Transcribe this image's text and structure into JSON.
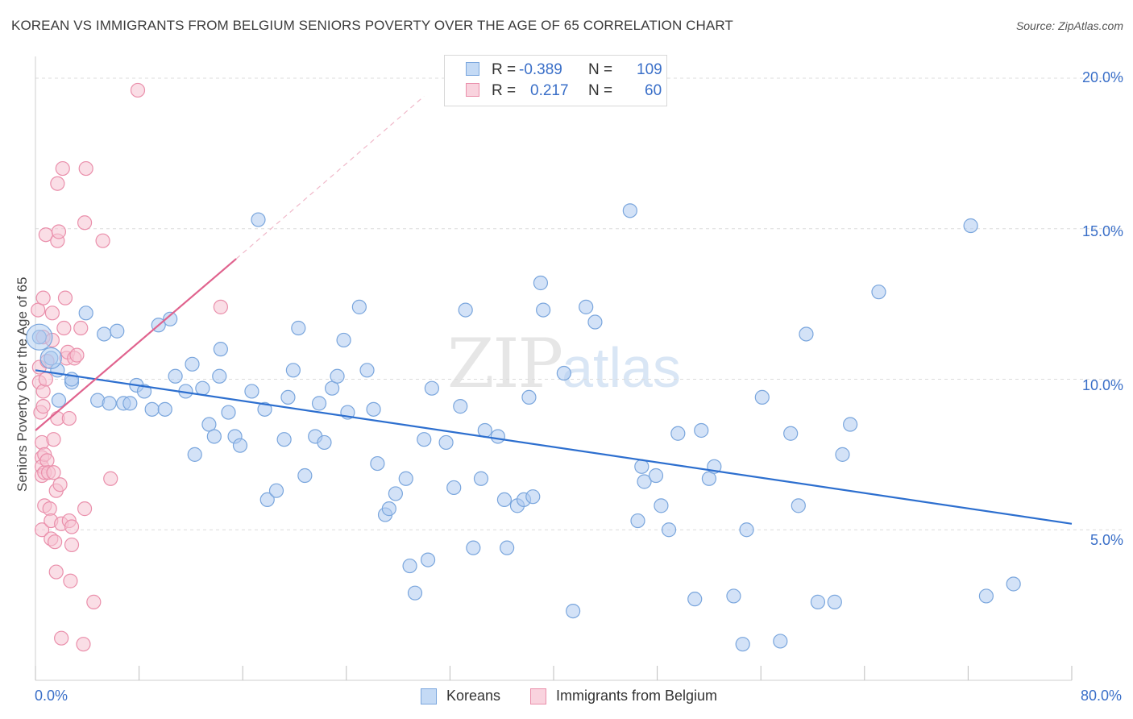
{
  "header": {
    "title": "KOREAN VS IMMIGRANTS FROM BELGIUM SENIORS POVERTY OVER THE AGE OF 65 CORRELATION CHART",
    "source": "Source: ZipAtlas.com"
  },
  "legend_top": {
    "rows": [
      {
        "r_label": "R =",
        "r_value": "-0.389",
        "n_label": "N =",
        "n_value": "109"
      },
      {
        "r_label": "R =",
        "r_value": "0.217",
        "n_label": "N =",
        "n_value": "60"
      }
    ]
  },
  "watermark": {
    "zip": "ZIP",
    "atlas": "atlas"
  },
  "axes": {
    "ylabel": "Seniors Poverty Over the Age of 65",
    "x_min_label": "0.0%",
    "x_max_label": "80.0%",
    "y_ticks": [
      "20.0%",
      "15.0%",
      "10.0%",
      "5.0%"
    ]
  },
  "bottom_legend": {
    "koreans": "Koreans",
    "belgium": "Immigrants from Belgium"
  },
  "colors": {
    "blue_fill": "#aecbf0",
    "blue_stroke": "#7aa6dd",
    "blue_line": "#2d6fcf",
    "pink_fill": "#f6c3d2",
    "pink_stroke": "#ea8fab",
    "pink_line": "#e0638e",
    "tick_text": "#3a6fc8",
    "grid": "#dcdcdc"
  },
  "chart_data": {
    "type": "scatter",
    "title": "KOREAN VS IMMIGRANTS FROM BELGIUM SENIORS POVERTY OVER THE AGE OF 65 CORRELATION CHART",
    "xlabel": "",
    "ylabel": "Seniors Poverty Over the Age of 65",
    "xlim": [
      0,
      80
    ],
    "ylim": [
      0,
      20
    ],
    "grid": true,
    "legend": "top-center",
    "series": [
      {
        "name": "Koreans",
        "R": -0.389,
        "N": 109,
        "trend": {
          "x0": 0,
          "y0": 10.3,
          "x1": 80,
          "y1": 5.2
        },
        "points": [
          [
            0.3,
            11.4
          ],
          [
            1.2,
            10.7
          ],
          [
            1.7,
            10.3
          ],
          [
            1.8,
            9.3
          ],
          [
            2.8,
            9.9
          ],
          [
            3.9,
            12.2
          ],
          [
            4.8,
            9.3
          ],
          [
            5.3,
            11.5
          ],
          [
            5.7,
            9.2
          ],
          [
            6.3,
            11.6
          ],
          [
            6.8,
            9.2
          ],
          [
            7.3,
            9.2
          ],
          [
            7.8,
            9.8
          ],
          [
            8.4,
            9.6
          ],
          [
            9.0,
            9.0
          ],
          [
            9.5,
            11.8
          ],
          [
            10.0,
            9.0
          ],
          [
            10.4,
            12.0
          ],
          [
            10.8,
            10.1
          ],
          [
            11.6,
            9.6
          ],
          [
            12.1,
            10.5
          ],
          [
            12.3,
            7.5
          ],
          [
            12.9,
            9.7
          ],
          [
            13.4,
            8.5
          ],
          [
            13.8,
            8.1
          ],
          [
            14.3,
            11.0
          ],
          [
            14.9,
            8.9
          ],
          [
            15.4,
            8.1
          ],
          [
            15.8,
            7.8
          ],
          [
            16.7,
            9.6
          ],
          [
            17.2,
            15.3
          ],
          [
            17.7,
            9.0
          ],
          [
            17.9,
            6.0
          ],
          [
            18.6,
            6.3
          ],
          [
            19.2,
            8.0
          ],
          [
            19.5,
            9.4
          ],
          [
            19.9,
            10.3
          ],
          [
            20.3,
            11.7
          ],
          [
            20.8,
            6.8
          ],
          [
            21.6,
            8.1
          ],
          [
            21.9,
            9.2
          ],
          [
            22.3,
            7.9
          ],
          [
            22.9,
            9.7
          ],
          [
            23.3,
            10.1
          ],
          [
            23.8,
            11.3
          ],
          [
            24.1,
            8.9
          ],
          [
            25.0,
            12.4
          ],
          [
            25.6,
            10.3
          ],
          [
            26.1,
            9.0
          ],
          [
            26.4,
            7.2
          ],
          [
            27.0,
            5.5
          ],
          [
            27.3,
            5.7
          ],
          [
            27.8,
            6.2
          ],
          [
            28.6,
            6.7
          ],
          [
            28.9,
            3.8
          ],
          [
            29.3,
            2.9
          ],
          [
            30.3,
            4.0
          ],
          [
            30.6,
            9.7
          ],
          [
            31.7,
            7.9
          ],
          [
            32.3,
            6.4
          ],
          [
            32.8,
            9.1
          ],
          [
            33.2,
            12.3
          ],
          [
            33.8,
            4.4
          ],
          [
            34.4,
            6.7
          ],
          [
            34.7,
            8.3
          ],
          [
            35.7,
            8.1
          ],
          [
            36.2,
            6.0
          ],
          [
            36.4,
            4.4
          ],
          [
            37.2,
            5.8
          ],
          [
            37.7,
            6.0
          ],
          [
            38.1,
            9.4
          ],
          [
            38.4,
            6.1
          ],
          [
            39.0,
            13.2
          ],
          [
            39.2,
            12.3
          ],
          [
            40.8,
            10.2
          ],
          [
            41.5,
            2.3
          ],
          [
            42.5,
            12.4
          ],
          [
            43.2,
            11.9
          ],
          [
            45.9,
            15.6
          ],
          [
            46.8,
            7.1
          ],
          [
            47.0,
            6.6
          ],
          [
            47.9,
            6.8
          ],
          [
            48.3,
            5.8
          ],
          [
            48.9,
            5.0
          ],
          [
            49.6,
            8.2
          ],
          [
            50.9,
            2.7
          ],
          [
            51.4,
            8.3
          ],
          [
            52.0,
            6.7
          ],
          [
            52.4,
            7.1
          ],
          [
            53.9,
            2.8
          ],
          [
            54.6,
            1.2
          ],
          [
            54.9,
            5.0
          ],
          [
            56.1,
            9.4
          ],
          [
            57.5,
            1.3
          ],
          [
            58.3,
            8.2
          ],
          [
            58.9,
            5.8
          ],
          [
            59.5,
            11.5
          ],
          [
            60.4,
            2.6
          ],
          [
            61.7,
            2.6
          ],
          [
            62.3,
            7.5
          ],
          [
            62.9,
            8.5
          ],
          [
            65.1,
            12.9
          ],
          [
            72.2,
            15.1
          ],
          [
            73.4,
            2.8
          ],
          [
            75.5,
            3.2
          ],
          [
            2.8,
            10.0
          ],
          [
            14.2,
            10.1
          ],
          [
            30.0,
            8.0
          ],
          [
            46.5,
            5.3
          ]
        ]
      },
      {
        "name": "Immigrants from Belgium",
        "R": 0.217,
        "N": 60,
        "trend": {
          "x0": 0,
          "y0": 8.3,
          "x1": 15.5,
          "y1": 14.0,
          "dashed_to": {
            "x": 30,
            "y": 19.4
          }
        },
        "points": [
          [
            0.2,
            12.3
          ],
          [
            0.3,
            10.4
          ],
          [
            0.3,
            9.9
          ],
          [
            0.4,
            8.9
          ],
          [
            0.5,
            7.9
          ],
          [
            0.5,
            7.4
          ],
          [
            0.5,
            7.1
          ],
          [
            0.5,
            6.8
          ],
          [
            0.5,
            5.0
          ],
          [
            0.6,
            12.7
          ],
          [
            0.6,
            11.4
          ],
          [
            0.6,
            9.1
          ],
          [
            0.6,
            9.6
          ],
          [
            0.7,
            7.5
          ],
          [
            0.7,
            6.9
          ],
          [
            0.7,
            5.8
          ],
          [
            0.8,
            14.8
          ],
          [
            0.8,
            10.0
          ],
          [
            0.9,
            10.6
          ],
          [
            0.9,
            7.3
          ],
          [
            1.0,
            6.9
          ],
          [
            1.1,
            5.7
          ],
          [
            1.2,
            4.7
          ],
          [
            1.2,
            5.3
          ],
          [
            1.3,
            12.2
          ],
          [
            1.3,
            11.3
          ],
          [
            1.4,
            8.0
          ],
          [
            1.4,
            6.9
          ],
          [
            1.5,
            4.6
          ],
          [
            1.6,
            6.3
          ],
          [
            1.6,
            3.6
          ],
          [
            1.7,
            14.6
          ],
          [
            1.7,
            8.7
          ],
          [
            1.7,
            16.5
          ],
          [
            1.8,
            14.9
          ],
          [
            1.9,
            6.5
          ],
          [
            2.0,
            5.2
          ],
          [
            2.0,
            1.4
          ],
          [
            2.1,
            17.0
          ],
          [
            2.2,
            11.7
          ],
          [
            2.3,
            12.7
          ],
          [
            2.4,
            10.7
          ],
          [
            2.5,
            10.9
          ],
          [
            2.6,
            8.7
          ],
          [
            2.6,
            5.3
          ],
          [
            2.7,
            3.3
          ],
          [
            2.8,
            5.1
          ],
          [
            2.8,
            4.5
          ],
          [
            3.0,
            10.7
          ],
          [
            3.2,
            10.8
          ],
          [
            3.5,
            11.7
          ],
          [
            3.7,
            1.2
          ],
          [
            3.8,
            15.2
          ],
          [
            3.9,
            17.0
          ],
          [
            3.8,
            5.7
          ],
          [
            4.5,
            2.6
          ],
          [
            5.2,
            14.6
          ],
          [
            5.8,
            6.7
          ],
          [
            7.9,
            19.6
          ],
          [
            14.3,
            12.4
          ]
        ]
      }
    ]
  }
}
